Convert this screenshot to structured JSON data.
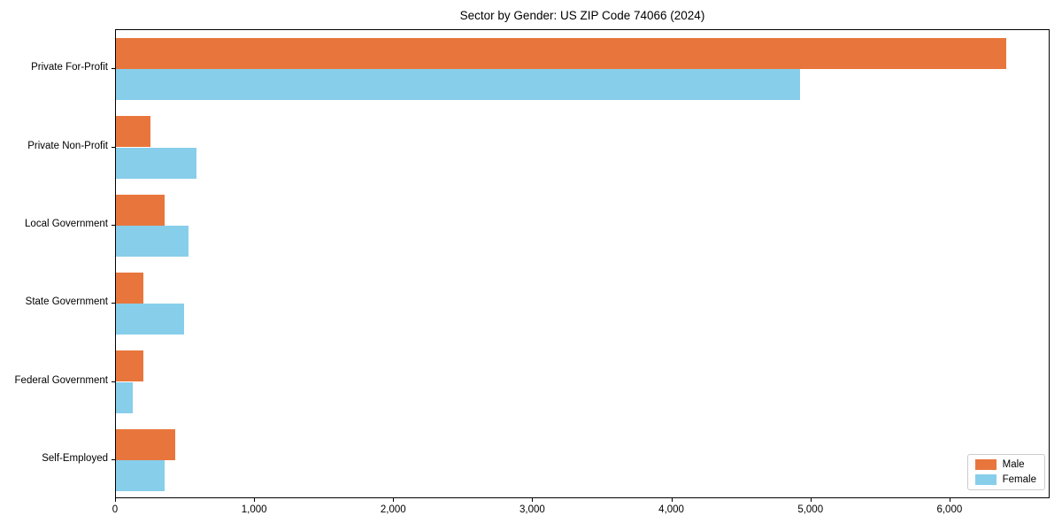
{
  "chart_data": {
    "type": "bar",
    "orientation": "horizontal",
    "title": "Sector by Gender: US ZIP Code 74066 (2024)",
    "categories": [
      "Private For-Profit",
      "Private Non-Profit",
      "Local Government",
      "State Government",
      "Federal Government",
      "Self-Employed"
    ],
    "series": [
      {
        "name": "Male",
        "color": "#e8763c",
        "values": [
          6400,
          250,
          350,
          195,
          195,
          425
        ]
      },
      {
        "name": "Female",
        "color": "#87ceeb",
        "values": [
          4920,
          580,
          520,
          490,
          120,
          350
        ]
      }
    ],
    "xlim": [
      0,
      6720
    ],
    "xticks": [
      0,
      1000,
      2000,
      3000,
      4000,
      5000,
      6000
    ],
    "xtick_labels": [
      "0",
      "1,000",
      "2,000",
      "3,000",
      "4,000",
      "5,000",
      "6,000"
    ],
    "xlabel": "",
    "ylabel": "",
    "grid": false,
    "legend": {
      "position": "lower right",
      "entries": [
        "Male",
        "Female"
      ]
    }
  }
}
